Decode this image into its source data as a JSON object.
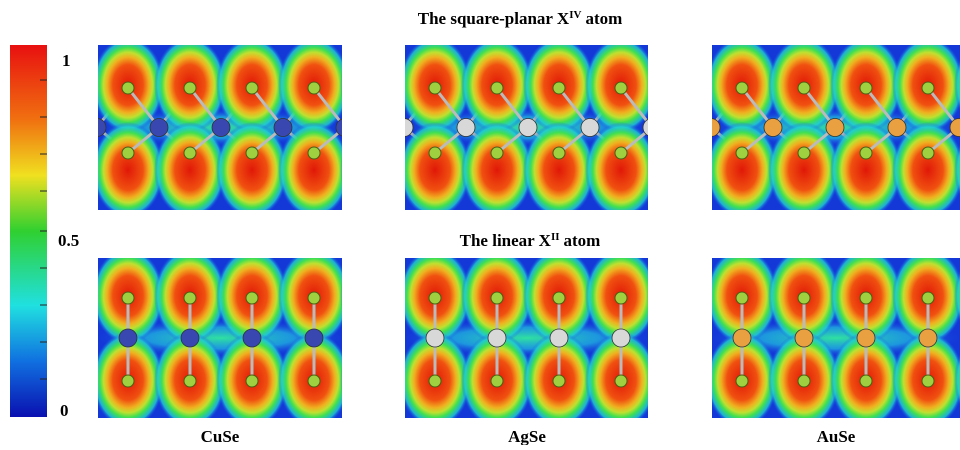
{
  "figure": {
    "top_title": {
      "text": "The square-planar X",
      "sup": "IV",
      "tail": "atom"
    },
    "middle_title": {
      "text": "The linear X",
      "sup": "II",
      "tail": "atom"
    },
    "colorbar": {
      "labels": [
        "1",
        "0.5",
        "0"
      ]
    },
    "columns": [
      "CuSe",
      "AgSe",
      "AuSe"
    ]
  }
}
